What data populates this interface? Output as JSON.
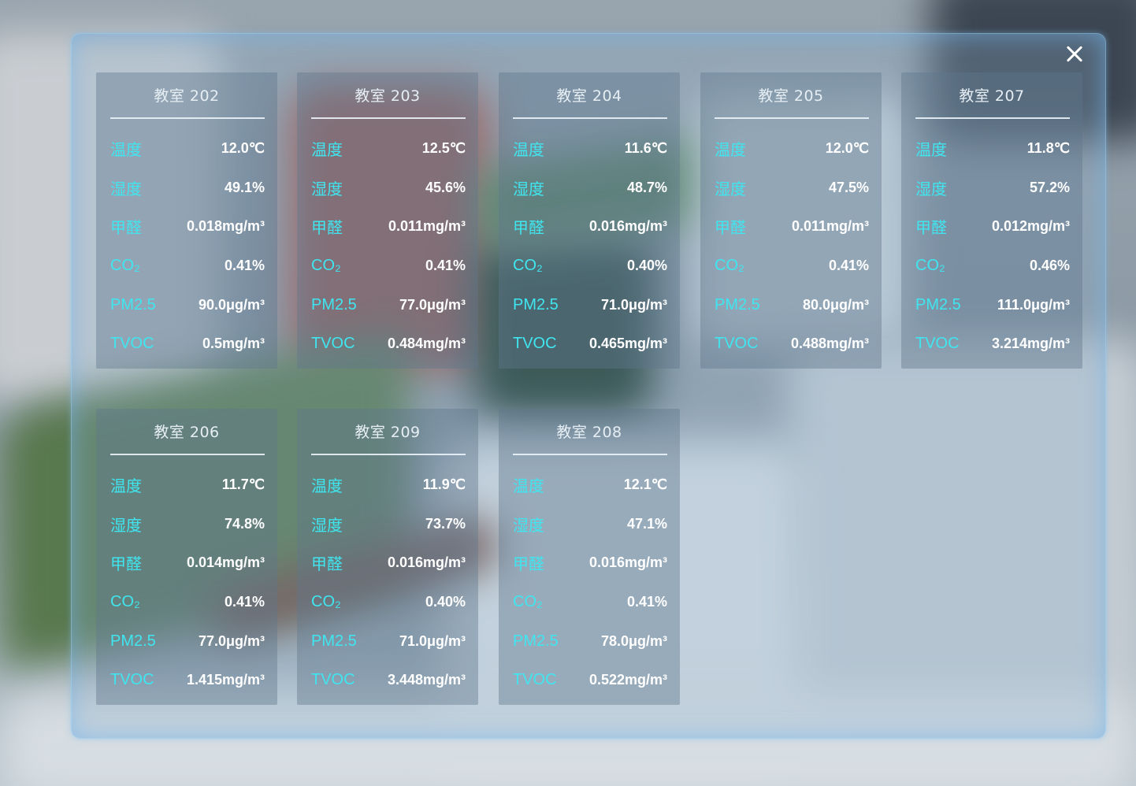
{
  "dialog": {
    "close_label": "",
    "rooms": [
      {
        "title": "教室 202",
        "metrics": [
          {
            "label": "温度",
            "value": "12.0℃"
          },
          {
            "label": "湿度",
            "value": "49.1%"
          },
          {
            "label": "甲醛",
            "value": "0.018mg/m³"
          },
          {
            "label": "CO₂",
            "value": "0.41%"
          },
          {
            "label": "PM2.5",
            "value": "90.0μg/m³"
          },
          {
            "label": "TVOC",
            "value": "0.5mg/m³"
          }
        ]
      },
      {
        "title": "教室 203",
        "metrics": [
          {
            "label": "温度",
            "value": "12.5℃"
          },
          {
            "label": "湿度",
            "value": "45.6%"
          },
          {
            "label": "甲醛",
            "value": "0.011mg/m³"
          },
          {
            "label": "CO₂",
            "value": "0.41%"
          },
          {
            "label": "PM2.5",
            "value": "77.0μg/m³"
          },
          {
            "label": "TVOC",
            "value": "0.484mg/m³"
          }
        ]
      },
      {
        "title": "教室 204",
        "metrics": [
          {
            "label": "温度",
            "value": "11.6℃"
          },
          {
            "label": "湿度",
            "value": "48.7%"
          },
          {
            "label": "甲醛",
            "value": "0.016mg/m³"
          },
          {
            "label": "CO₂",
            "value": "0.40%"
          },
          {
            "label": "PM2.5",
            "value": "71.0μg/m³"
          },
          {
            "label": "TVOC",
            "value": "0.465mg/m³"
          }
        ]
      },
      {
        "title": "教室 205",
        "metrics": [
          {
            "label": "温度",
            "value": "12.0℃"
          },
          {
            "label": "湿度",
            "value": "47.5%"
          },
          {
            "label": "甲醛",
            "value": "0.011mg/m³"
          },
          {
            "label": "CO₂",
            "value": "0.41%"
          },
          {
            "label": "PM2.5",
            "value": "80.0μg/m³"
          },
          {
            "label": "TVOC",
            "value": "0.488mg/m³"
          }
        ]
      },
      {
        "title": "教室 207",
        "metrics": [
          {
            "label": "温度",
            "value": "11.8℃"
          },
          {
            "label": "湿度",
            "value": "57.2%"
          },
          {
            "label": "甲醛",
            "value": "0.012mg/m³"
          },
          {
            "label": "CO₂",
            "value": "0.46%"
          },
          {
            "label": "PM2.5",
            "value": "111.0μg/m³"
          },
          {
            "label": "TVOC",
            "value": "3.214mg/m³"
          }
        ]
      },
      {
        "title": "教室 206",
        "metrics": [
          {
            "label": "温度",
            "value": "11.7℃"
          },
          {
            "label": "湿度",
            "value": "74.8%"
          },
          {
            "label": "甲醛",
            "value": "0.014mg/m³"
          },
          {
            "label": "CO₂",
            "value": "0.41%"
          },
          {
            "label": "PM2.5",
            "value": "77.0μg/m³"
          },
          {
            "label": "TVOC",
            "value": "1.415mg/m³"
          }
        ]
      },
      {
        "title": "教室 209",
        "metrics": [
          {
            "label": "温度",
            "value": "11.9℃"
          },
          {
            "label": "湿度",
            "value": "73.7%"
          },
          {
            "label": "甲醛",
            "value": "0.016mg/m³"
          },
          {
            "label": "CO₂",
            "value": "0.40%"
          },
          {
            "label": "PM2.5",
            "value": "71.0μg/m³"
          },
          {
            "label": "TVOC",
            "value": "3.448mg/m³"
          }
        ]
      },
      {
        "title": "教室 208",
        "metrics": [
          {
            "label": "温度",
            "value": "12.1℃"
          },
          {
            "label": "湿度",
            "value": "47.1%"
          },
          {
            "label": "甲醛",
            "value": "0.016mg/m³"
          },
          {
            "label": "CO₂",
            "value": "0.41%"
          },
          {
            "label": "PM2.5",
            "value": "78.0μg/m³"
          },
          {
            "label": "TVOC",
            "value": "0.522mg/m³"
          }
        ]
      }
    ]
  },
  "icons": {
    "close": "close-icon"
  },
  "colors": {
    "label": "#3fe6f0",
    "value": "#ffffff",
    "panel_glow": "#73b4eb"
  }
}
